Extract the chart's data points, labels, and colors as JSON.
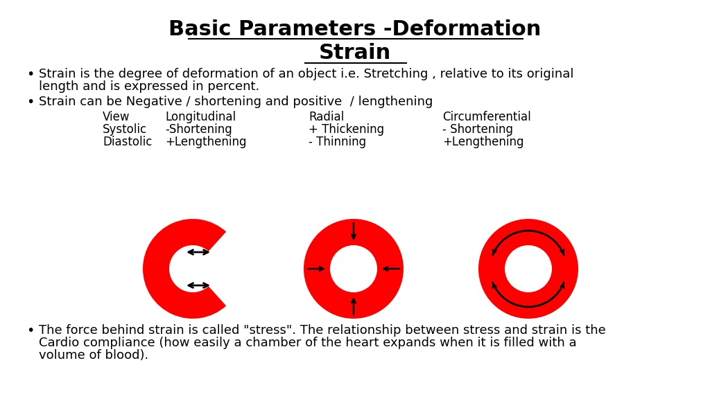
{
  "title": "Basic Parameters -Deformation",
  "subtitle": "Strain",
  "bullet1_line1": "Strain is the degree of deformation of an object i.e. Stretching , relative to its original",
  "bullet1_line2": "length and is expressed in percent.",
  "bullet2": "Strain can be Negative / shortening and positive  / lengthening",
  "table_headers": [
    "View",
    "Longitudinal",
    "Radial",
    "Circumferential"
  ],
  "table_row1": [
    "Systolic",
    "-Shortening",
    "+ Thickening",
    "- Shortening"
  ],
  "table_row2": [
    "Diastolic",
    "+Lengthening",
    "- Thinning",
    "+Lengthening"
  ],
  "bullet3_line1": "The force behind strain is called \"stress\". The relationship between stress and strain is the",
  "bullet3_line2": "Cardio compliance (how easily a chamber of the heart expands when it is filled with a",
  "bullet3_line3": "volume of blood).",
  "red_color": "#FF0000",
  "black": "#000000",
  "white": "#FFFFFF",
  "bg_color": "#FFFFFF",
  "fig_width": 10.24,
  "fig_height": 5.76
}
